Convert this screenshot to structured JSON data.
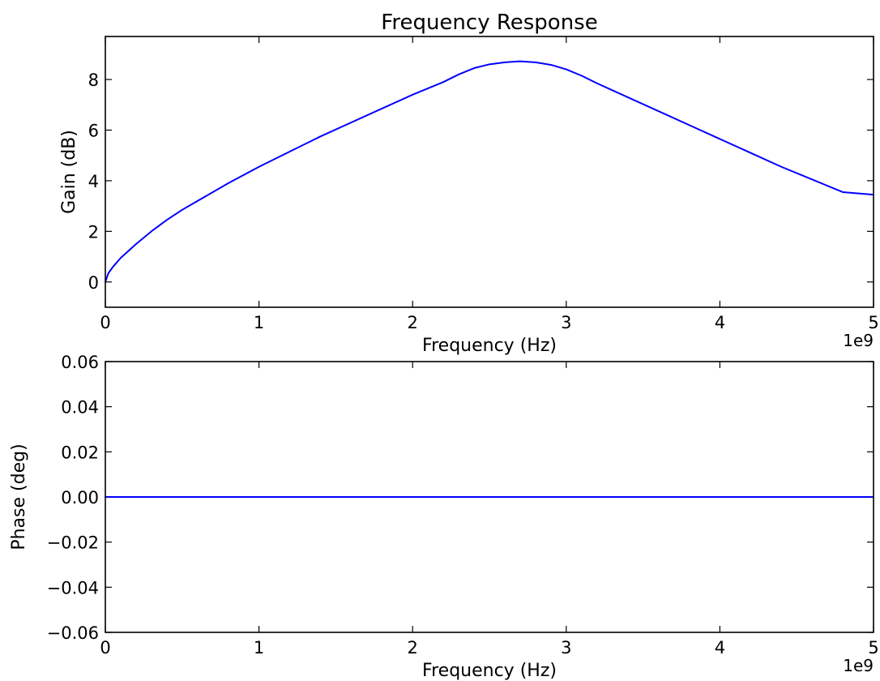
{
  "chart_data": [
    {
      "type": "line",
      "title": "Frequency Response",
      "xlabel": "Frequency (Hz)",
      "ylabel": "Gain (dB)",
      "x_offset_label": "1e9",
      "xlim": [
        0,
        5
      ],
      "ylim": [
        -1,
        9.7
      ],
      "xticks": [
        0,
        1,
        2,
        3,
        4,
        5
      ],
      "xtick_labels": [
        "0",
        "1",
        "2",
        "3",
        "4",
        "5"
      ],
      "yticks": [
        0,
        2,
        4,
        6,
        8
      ],
      "ytick_labels": [
        "0",
        "2",
        "4",
        "6",
        "8"
      ],
      "grid": false,
      "color": "#0000ff",
      "series": [
        {
          "x": [
            0,
            0.02,
            0.05,
            0.1,
            0.2,
            0.3,
            0.4,
            0.5,
            0.6,
            0.8,
            1.0,
            1.2,
            1.4,
            1.6,
            1.8,
            2.0,
            2.2,
            2.3,
            2.4,
            2.5,
            2.6,
            2.7,
            2.8,
            2.9,
            3.0,
            3.1,
            3.2,
            3.4,
            3.6,
            3.8,
            4.0,
            4.2,
            4.4,
            4.6,
            4.8,
            5.0
          ],
          "y": [
            0,
            0.35,
            0.6,
            0.95,
            1.5,
            2.0,
            2.45,
            2.85,
            3.2,
            3.9,
            4.55,
            5.15,
            5.75,
            6.3,
            6.85,
            7.4,
            7.9,
            8.2,
            8.45,
            8.6,
            8.68,
            8.72,
            8.68,
            8.58,
            8.4,
            8.15,
            7.85,
            7.3,
            6.75,
            6.2,
            5.65,
            5.1,
            4.55,
            4.05,
            3.55,
            3.45
          ]
        }
      ]
    },
    {
      "type": "line",
      "title": "",
      "xlabel": "Frequency (Hz)",
      "ylabel": "Phase (deg)",
      "x_offset_label": "1e9",
      "xlim": [
        0,
        5
      ],
      "ylim": [
        -0.06,
        0.06
      ],
      "xticks": [
        0,
        1,
        2,
        3,
        4,
        5
      ],
      "xtick_labels": [
        "0",
        "1",
        "2",
        "3",
        "4",
        "5"
      ],
      "yticks": [
        -0.06,
        -0.04,
        -0.02,
        0.0,
        0.02,
        0.04,
        0.06
      ],
      "ytick_labels": [
        "−0.06",
        "−0.04",
        "−0.02",
        "0.00",
        "0.02",
        "0.04",
        "0.06"
      ],
      "grid": false,
      "color": "#0000ff",
      "series": [
        {
          "x": [
            0,
            5
          ],
          "y": [
            0,
            0
          ]
        }
      ]
    }
  ]
}
